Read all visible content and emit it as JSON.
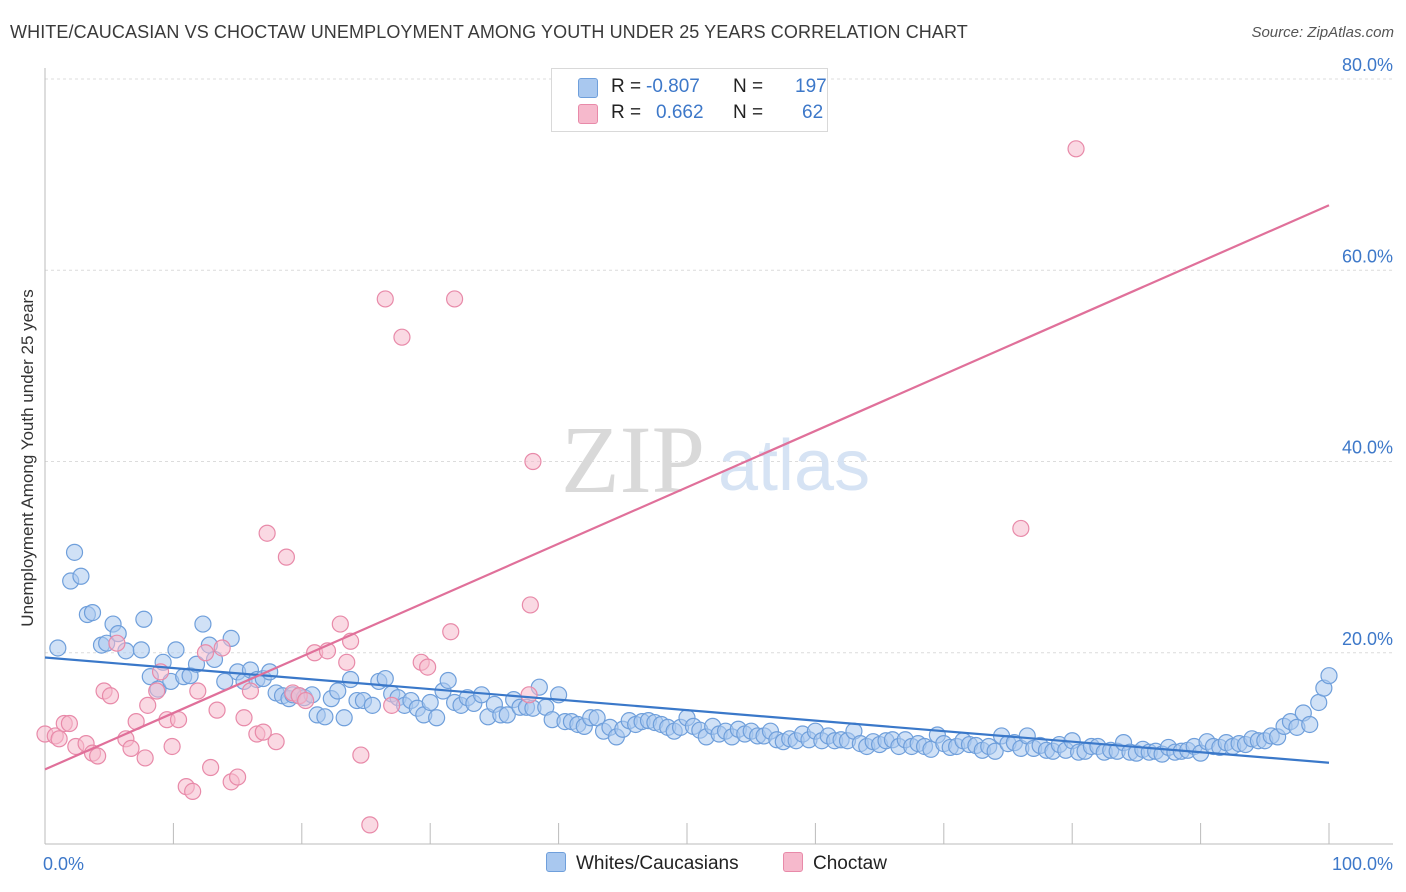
{
  "title": "WHITE/CAUCASIAN VS CHOCTAW UNEMPLOYMENT AMONG YOUTH UNDER 25 YEARS CORRELATION CHART",
  "source": "Source: ZipAtlas.com",
  "legend": {
    "rows": [
      {
        "r_label": "R =",
        "r_value": "-0.807",
        "n_label": "N =",
        "n_value": "197"
      },
      {
        "r_label": "R =",
        "r_value": "0.662",
        "n_label": "N =",
        "n_value": "62"
      }
    ]
  },
  "bottom_legend": {
    "white": "Whites/Caucasians",
    "choctaw": "Choctaw"
  },
  "watermark": {
    "zip": "ZIP",
    "atlas": "atlas"
  },
  "colors": {
    "white_fill": "#a9c8ef",
    "white_stroke": "#6f9fdb",
    "white_line": "#3a78c9",
    "choctaw_fill": "#f6b9cc",
    "choctaw_stroke": "#e88aa9",
    "choctaw_line": "#e0709a",
    "tick_label": "#3d78c9",
    "grid": "#dcdcdc"
  },
  "chart_data": {
    "type": "scatter",
    "title": "WHITE/CAUCASIAN VS CHOCTAW UNEMPLOYMENT AMONG YOUTH UNDER 25 YEARS CORRELATION CHART",
    "xlabel": "",
    "ylabel": "Unemployment Among Youth under 25 years",
    "xlim": [
      0,
      100
    ],
    "ylim": [
      0,
      80
    ],
    "x_tick_labels": [
      "0.0%",
      "100.0%"
    ],
    "y_ticks": [
      20,
      40,
      60,
      80
    ],
    "y_tick_labels": [
      "20.0%",
      "40.0%",
      "60.0%",
      "80.0%"
    ],
    "series": [
      {
        "name": "Whites/Caucasians",
        "r": -0.807,
        "n": 197,
        "trend": {
          "x": [
            0,
            100
          ],
          "y": [
            19.5,
            8.5
          ]
        },
        "points": [
          [
            1,
            20.5
          ],
          [
            2,
            27.5
          ],
          [
            2.3,
            30.5
          ],
          [
            2.8,
            28
          ],
          [
            3.3,
            24
          ],
          [
            3.7,
            24.2
          ],
          [
            4.4,
            20.8
          ],
          [
            4.8,
            21
          ],
          [
            5.3,
            23
          ],
          [
            5.7,
            22
          ],
          [
            6.3,
            20.2
          ],
          [
            7.5,
            20.3
          ],
          [
            7.7,
            23.5
          ],
          [
            8.2,
            17.5
          ],
          [
            8.8,
            16.2
          ],
          [
            9.2,
            19
          ],
          [
            9.8,
            17
          ],
          [
            10.2,
            20.3
          ],
          [
            10.8,
            17.5
          ],
          [
            11.3,
            17.6
          ],
          [
            11.8,
            18.8
          ],
          [
            12.3,
            23
          ],
          [
            12.8,
            20.8
          ],
          [
            13.2,
            19.3
          ],
          [
            14,
            17
          ],
          [
            14.5,
            21.5
          ],
          [
            15,
            18
          ],
          [
            15.5,
            17
          ],
          [
            16,
            18.2
          ],
          [
            16.5,
            17.2
          ],
          [
            17,
            17.3
          ],
          [
            17.5,
            18
          ],
          [
            18,
            15.8
          ],
          [
            18.5,
            15.5
          ],
          [
            19,
            15.2
          ],
          [
            19.3,
            15.6
          ],
          [
            19.8,
            15.5
          ],
          [
            20.2,
            15.3
          ],
          [
            20.8,
            15.6
          ],
          [
            21.2,
            13.5
          ],
          [
            21.8,
            13.3
          ],
          [
            22.3,
            15.2
          ],
          [
            22.8,
            16
          ],
          [
            23.3,
            13.2
          ],
          [
            23.8,
            17.2
          ],
          [
            24.3,
            15
          ],
          [
            24.8,
            15
          ],
          [
            25.5,
            14.5
          ],
          [
            26,
            17
          ],
          [
            26.5,
            17.3
          ],
          [
            27,
            15.7
          ],
          [
            27.5,
            15.3
          ],
          [
            28,
            14.5
          ],
          [
            28.5,
            15
          ],
          [
            29,
            14.2
          ],
          [
            29.5,
            13.5
          ],
          [
            30,
            14.8
          ],
          [
            30.5,
            13.2
          ],
          [
            31,
            16
          ],
          [
            31.4,
            17.1
          ],
          [
            31.9,
            14.8
          ],
          [
            32.4,
            14.5
          ],
          [
            32.9,
            15.3
          ],
          [
            33.4,
            14.7
          ],
          [
            34,
            15.6
          ],
          [
            34.5,
            13.3
          ],
          [
            35,
            14.6
          ],
          [
            35.5,
            13.5
          ],
          [
            36,
            13.5
          ],
          [
            36.5,
            15.1
          ],
          [
            37,
            14.3
          ],
          [
            37.5,
            14.3
          ],
          [
            38,
            14.2
          ],
          [
            38.5,
            16.4
          ],
          [
            39,
            14.3
          ],
          [
            39.5,
            13
          ],
          [
            40,
            15.6
          ],
          [
            40.5,
            12.8
          ],
          [
            41,
            12.8
          ],
          [
            41.5,
            12.5
          ],
          [
            42,
            12.3
          ],
          [
            42.5,
            13.2
          ],
          [
            43,
            13.2
          ],
          [
            43.5,
            11.8
          ],
          [
            44,
            12.2
          ],
          [
            44.5,
            11.2
          ],
          [
            45,
            12
          ],
          [
            45.5,
            12.9
          ],
          [
            46,
            12.5
          ],
          [
            46.5,
            12.8
          ],
          [
            47,
            12.9
          ],
          [
            47.5,
            12.7
          ],
          [
            48,
            12.5
          ],
          [
            48.5,
            12.2
          ],
          [
            49,
            11.8
          ],
          [
            49.5,
            12.2
          ],
          [
            50,
            13.2
          ],
          [
            50.5,
            12.3
          ],
          [
            51,
            11.9
          ],
          [
            51.5,
            11.2
          ],
          [
            52,
            12.3
          ],
          [
            52.5,
            11.5
          ],
          [
            53,
            11.8
          ],
          [
            53.5,
            11.2
          ],
          [
            54,
            12
          ],
          [
            54.5,
            11.5
          ],
          [
            55,
            11.8
          ],
          [
            55.5,
            11.3
          ],
          [
            56,
            11.3
          ],
          [
            56.5,
            11.8
          ],
          [
            57,
            10.9
          ],
          [
            57.5,
            10.7
          ],
          [
            58,
            11
          ],
          [
            58.5,
            10.8
          ],
          [
            59,
            11.5
          ],
          [
            59.5,
            10.9
          ],
          [
            60,
            11.8
          ],
          [
            60.5,
            10.8
          ],
          [
            61,
            11.3
          ],
          [
            61.5,
            10.8
          ],
          [
            62,
            10.9
          ],
          [
            62.5,
            10.8
          ],
          [
            63,
            11.8
          ],
          [
            63.5,
            10.5
          ],
          [
            64,
            10.2
          ],
          [
            64.5,
            10.7
          ],
          [
            65,
            10.4
          ],
          [
            65.5,
            10.8
          ],
          [
            66,
            10.9
          ],
          [
            66.5,
            10.2
          ],
          [
            67,
            10.9
          ],
          [
            67.5,
            10.2
          ],
          [
            68,
            10.5
          ],
          [
            68.5,
            10.2
          ],
          [
            69,
            9.9
          ],
          [
            69.5,
            11.4
          ],
          [
            70,
            10.5
          ],
          [
            70.5,
            10.1
          ],
          [
            71,
            10.2
          ],
          [
            71.5,
            10.8
          ],
          [
            72,
            10.4
          ],
          [
            72.5,
            10.3
          ],
          [
            73,
            9.8
          ],
          [
            73.5,
            10.2
          ],
          [
            74,
            9.7
          ],
          [
            74.5,
            11.3
          ],
          [
            75,
            10.5
          ],
          [
            75.5,
            10.6
          ],
          [
            76,
            10
          ],
          [
            76.5,
            11.3
          ],
          [
            77,
            10
          ],
          [
            77.5,
            10.3
          ],
          [
            78,
            9.8
          ],
          [
            78.5,
            9.7
          ],
          [
            79,
            10.4
          ],
          [
            79.5,
            9.8
          ],
          [
            80,
            10.8
          ],
          [
            80.5,
            9.6
          ],
          [
            81,
            9.7
          ],
          [
            81.5,
            10.2
          ],
          [
            82,
            10.2
          ],
          [
            82.5,
            9.6
          ],
          [
            83,
            9.8
          ],
          [
            83.5,
            9.7
          ],
          [
            84,
            10.6
          ],
          [
            84.5,
            9.6
          ],
          [
            85,
            9.5
          ],
          [
            85.5,
            9.9
          ],
          [
            86,
            9.6
          ],
          [
            86.5,
            9.7
          ],
          [
            87,
            9.4
          ],
          [
            87.5,
            10.1
          ],
          [
            88,
            9.6
          ],
          [
            88.5,
            9.7
          ],
          [
            89,
            9.8
          ],
          [
            89.5,
            10.2
          ],
          [
            90,
            9.5
          ],
          [
            90.5,
            10.7
          ],
          [
            91,
            10.2
          ],
          [
            91.5,
            10.1
          ],
          [
            92,
            10.6
          ],
          [
            92.5,
            10.2
          ],
          [
            93,
            10.5
          ],
          [
            93.5,
            10.4
          ],
          [
            94,
            11
          ],
          [
            94.5,
            10.8
          ],
          [
            95,
            10.8
          ],
          [
            95.5,
            11.3
          ],
          [
            96,
            11.2
          ],
          [
            96.5,
            12.3
          ],
          [
            97,
            12.8
          ],
          [
            97.5,
            12.2
          ],
          [
            98,
            13.7
          ],
          [
            98.5,
            12.5
          ],
          [
            99.2,
            14.8
          ],
          [
            99.6,
            16.3
          ],
          [
            100,
            17.6
          ]
        ]
      },
      {
        "name": "Choctaw",
        "r": 0.662,
        "n": 62,
        "trend": {
          "x": [
            0,
            100
          ],
          "y": [
            7.8,
            66.8
          ]
        },
        "points": [
          [
            0,
            11.5
          ],
          [
            0.8,
            11.3
          ],
          [
            1.1,
            11
          ],
          [
            1.5,
            12.6
          ],
          [
            1.9,
            12.6
          ],
          [
            2.4,
            10.2
          ],
          [
            3.2,
            10.5
          ],
          [
            3.7,
            9.5
          ],
          [
            4.1,
            9.2
          ],
          [
            4.6,
            16
          ],
          [
            5.1,
            15.5
          ],
          [
            5.6,
            21
          ],
          [
            6.3,
            11
          ],
          [
            6.7,
            10
          ],
          [
            7.1,
            12.8
          ],
          [
            7.8,
            9
          ],
          [
            8,
            14.5
          ],
          [
            8.7,
            16
          ],
          [
            9,
            18
          ],
          [
            9.5,
            13
          ],
          [
            9.9,
            10.2
          ],
          [
            10.4,
            13
          ],
          [
            11,
            6
          ],
          [
            11.5,
            5.5
          ],
          [
            11.9,
            16
          ],
          [
            12.5,
            20
          ],
          [
            12.9,
            8
          ],
          [
            13.4,
            14
          ],
          [
            13.8,
            20.5
          ],
          [
            14.5,
            6.5
          ],
          [
            15,
            7
          ],
          [
            15.5,
            13.2
          ],
          [
            16,
            16
          ],
          [
            16.5,
            11.5
          ],
          [
            17,
            11.7
          ],
          [
            17.3,
            32.5
          ],
          [
            18,
            10.7
          ],
          [
            18.8,
            30
          ],
          [
            19.3,
            15.8
          ],
          [
            19.8,
            15.5
          ],
          [
            20.3,
            15
          ],
          [
            21,
            20
          ],
          [
            22,
            20.2
          ],
          [
            23,
            23
          ],
          [
            23.5,
            19
          ],
          [
            23.8,
            21.2
          ],
          [
            24.6,
            9.3
          ],
          [
            25.3,
            2
          ],
          [
            26.5,
            57
          ],
          [
            27,
            14.5
          ],
          [
            27.8,
            53
          ],
          [
            29.3,
            19
          ],
          [
            29.8,
            18.5
          ],
          [
            31.6,
            22.2
          ],
          [
            31.9,
            57
          ],
          [
            37.7,
            15.6
          ],
          [
            37.8,
            25
          ],
          [
            38,
            40
          ],
          [
            76,
            33
          ],
          [
            80.3,
            72.7
          ]
        ]
      }
    ]
  }
}
